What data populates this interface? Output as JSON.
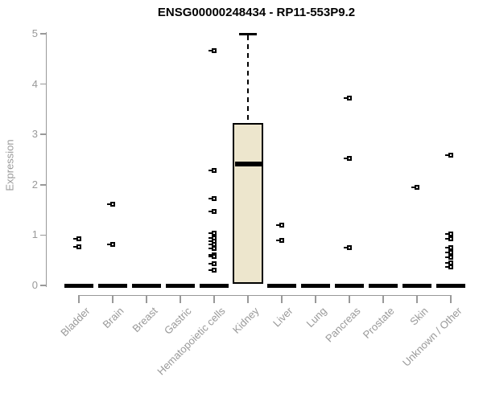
{
  "page": {
    "background": "#ffffff"
  },
  "chart_data": {
    "type": "box",
    "title": "ENSG00000248434 - RP11-553P9.2",
    "ylabel": "Expression",
    "xlabel": "",
    "ylim": [
      0,
      5
    ],
    "yticks": [
      "0",
      "1",
      "2",
      "3",
      "4",
      "5"
    ],
    "grid": false,
    "legend": false,
    "categories": [
      "Bladder",
      "Brain",
      "Breast",
      "Gastric",
      "Hematopoietic cells",
      "Kidney",
      "Liver",
      "Lung",
      "Pancreas",
      "Prostate",
      "Skin",
      "Unknown / Other"
    ],
    "groups": [
      {
        "label": "Bladder",
        "q1": 0,
        "median": 0,
        "q3": 0,
        "outliers": [
          0.92,
          0.76
        ]
      },
      {
        "label": "Brain",
        "q1": 0,
        "median": 0,
        "q3": 0,
        "outliers": [
          1.62,
          0.81
        ]
      },
      {
        "label": "Breast",
        "q1": 0,
        "median": 0,
        "q3": 0,
        "outliers": []
      },
      {
        "label": "Gastric",
        "q1": 0,
        "median": 0,
        "q3": 0,
        "outliers": []
      },
      {
        "label": "Hematopoietic cells",
        "q1": 0,
        "median": 0,
        "q3": 0,
        "outliers": [
          4.67,
          2.28,
          1.73,
          1.47,
          1.04,
          0.94,
          0.88,
          0.81,
          0.73,
          0.61,
          0.57,
          0.43,
          0.3
        ]
      },
      {
        "label": "Kidney",
        "q1": 0.03,
        "median": 2.42,
        "q3": 3.23,
        "whisker_high": 5.0,
        "outliers": []
      },
      {
        "label": "Liver",
        "q1": 0,
        "median": 0,
        "q3": 0,
        "outliers": [
          1.2,
          0.89
        ]
      },
      {
        "label": "Lung",
        "q1": 0,
        "median": 0,
        "q3": 0,
        "outliers": []
      },
      {
        "label": "Pancreas",
        "q1": 0,
        "median": 0,
        "q3": 0,
        "outliers": [
          3.72,
          2.52,
          0.75
        ]
      },
      {
        "label": "Prostate",
        "q1": 0,
        "median": 0,
        "q3": 0,
        "outliers": []
      },
      {
        "label": "Skin",
        "q1": 0,
        "median": 0,
        "q3": 0,
        "outliers": [
          1.95
        ]
      },
      {
        "label": "Unknown / Other",
        "q1": 0,
        "median": 0,
        "q3": 0,
        "outliers": [
          2.59,
          1.02,
          0.93,
          0.75,
          0.66,
          0.56,
          0.45,
          0.37
        ]
      }
    ],
    "colors": {
      "box_fill": "#EDE6CD",
      "box_border": "#000000",
      "median": "#000000",
      "axis": "#999999",
      "tick_label": "#999999",
      "title": "#000000",
      "outlier": "#000000",
      "background": "#ffffff"
    }
  }
}
